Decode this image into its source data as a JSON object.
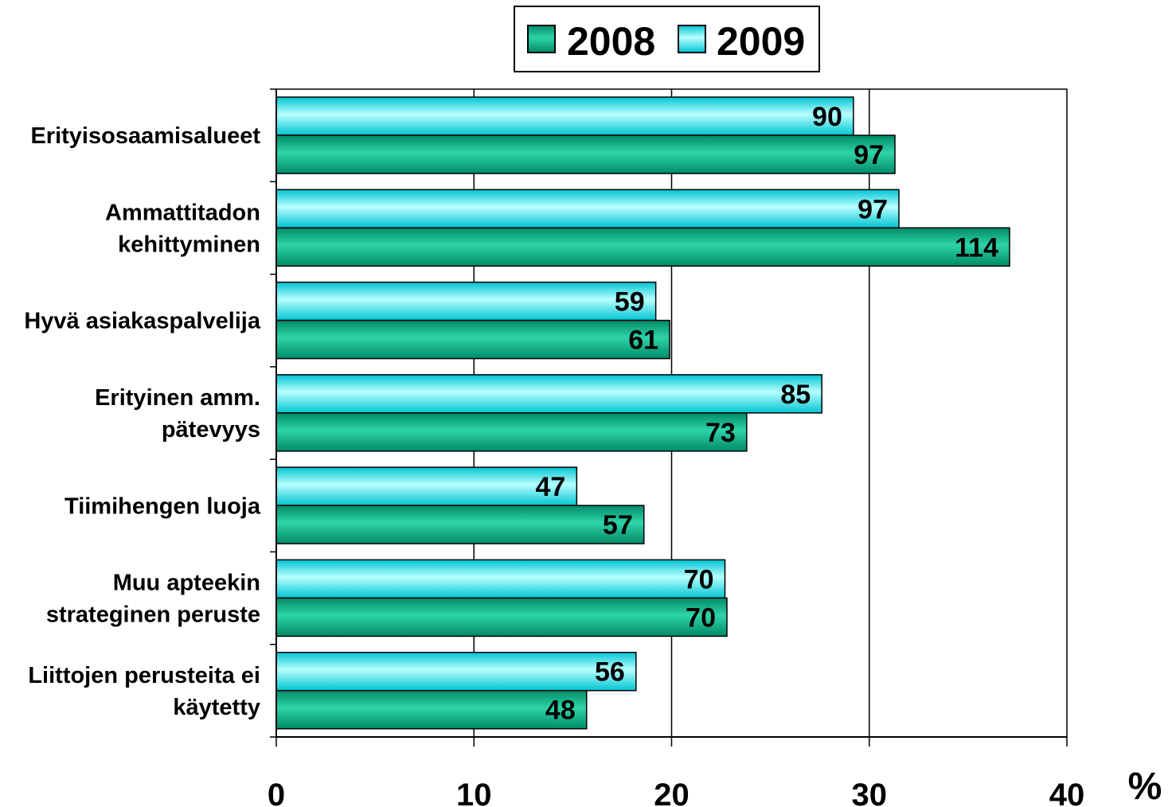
{
  "chart_data": {
    "type": "bar",
    "orientation": "horizontal",
    "categories": [
      "Erityisosaamisalueet",
      "Ammattitadon kehittyminen",
      "Hyvä asiakaspalvelija",
      "Erityinen amm. pätevyys",
      "Tiimihengen luoja",
      "Muu apteekin strateginen peruste",
      "Liittojen perusteita ei käytetty"
    ],
    "category_lines": [
      [
        "Erityisosaamisalueet"
      ],
      [
        "Ammattitadon",
        "kehittyminen"
      ],
      [
        "Hyvä asiakaspalvelija"
      ],
      [
        "Erityinen amm.",
        "pätevyys"
      ],
      [
        "Tiimihengen luoja"
      ],
      [
        "Muu apteekin",
        "strateginen peruste"
      ],
      [
        "Liittojen perusteita ei",
        "käytetty"
      ]
    ],
    "series": [
      {
        "name": "2008",
        "color": "#00b286",
        "values": [
          31.3,
          37.1,
          19.9,
          23.8,
          18.6,
          22.8,
          15.7
        ],
        "labels": [
          "97",
          "114",
          "61",
          "73",
          "57",
          "70",
          "48"
        ]
      },
      {
        "name": "2009",
        "color": "#00f0f0",
        "values": [
          29.2,
          31.5,
          19.2,
          27.6,
          15.2,
          22.7,
          18.2
        ],
        "labels": [
          "90",
          "97",
          "59",
          "85",
          "47",
          "70",
          "56"
        ]
      }
    ],
    "xlim": [
      0,
      40
    ],
    "xticks": [
      "0",
      "10",
      "20",
      "30",
      "40"
    ],
    "xunit": "%",
    "grid": "vertical",
    "legend": {
      "position": "top",
      "entries": [
        "2008",
        "2009"
      ]
    }
  }
}
